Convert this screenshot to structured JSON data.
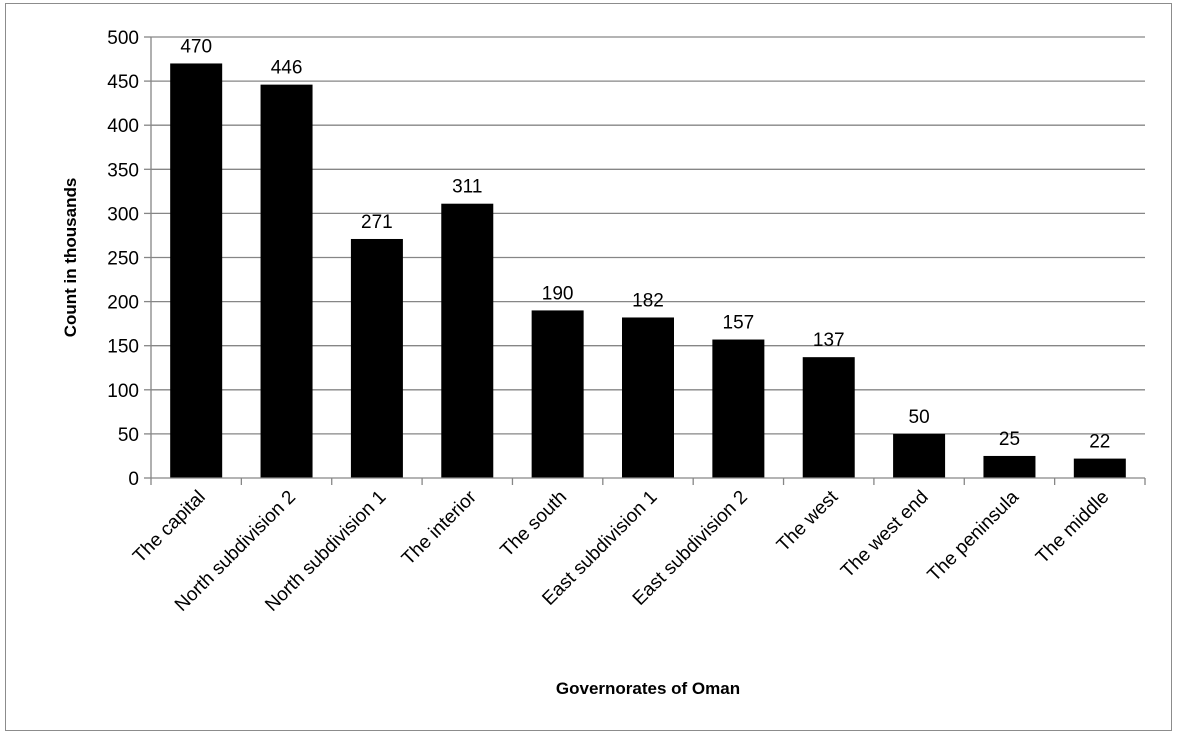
{
  "chart_data": {
    "type": "bar",
    "title": "",
    "xlabel": "Governorates of Oman",
    "ylabel": "Count in thousands",
    "categories": [
      "The capital",
      "North subdivision 2",
      "North subdivision 1",
      "The interior",
      "The south",
      "East subdivision 1",
      "East subdivision 2",
      "The west",
      "The west end",
      "The peninsula",
      "The middle"
    ],
    "values": [
      470,
      446,
      271,
      311,
      190,
      182,
      157,
      137,
      50,
      25,
      22
    ],
    "ylim": [
      0,
      500
    ],
    "yticks": [
      0,
      50,
      100,
      150,
      200,
      250,
      300,
      350,
      400,
      450,
      500
    ],
    "grid": true,
    "legend": "none",
    "colors": {
      "bar": "#000000",
      "grid": "#868686",
      "axis": "#868686"
    }
  }
}
